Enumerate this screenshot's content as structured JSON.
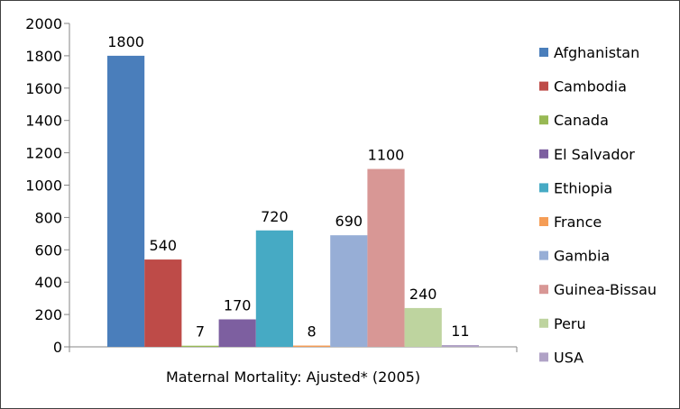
{
  "chart_data": {
    "type": "bar",
    "xlabel": "Maternal Mortality: Ajusted* (2005)",
    "ylabel": "",
    "ylim": [
      0,
      2000
    ],
    "yticks": [
      0,
      200,
      400,
      600,
      800,
      1000,
      1200,
      1400,
      1600,
      1800,
      2000
    ],
    "grid": false,
    "legend_position": "right",
    "series": [
      {
        "name": "Afghanistan",
        "value": 1800,
        "color": "#4A7EBB"
      },
      {
        "name": "Cambodia",
        "value": 540,
        "color": "#BE4B48"
      },
      {
        "name": "Canada",
        "value": 7,
        "color": "#98B954"
      },
      {
        "name": "El Salvador",
        "value": 170,
        "color": "#7D5FA0"
      },
      {
        "name": "Ethiopia",
        "value": 720,
        "color": "#46AAC4"
      },
      {
        "name": "France",
        "value": 8,
        "color": "#F59D56"
      },
      {
        "name": "Gambia",
        "value": 690,
        "color": "#97AED6"
      },
      {
        "name": "Guinea-Bissau",
        "value": 1100,
        "color": "#D89795"
      },
      {
        "name": "Peru",
        "value": 240,
        "color": "#BED49F"
      },
      {
        "name": "USA",
        "value": 11,
        "color": "#B0A2C6"
      }
    ]
  }
}
